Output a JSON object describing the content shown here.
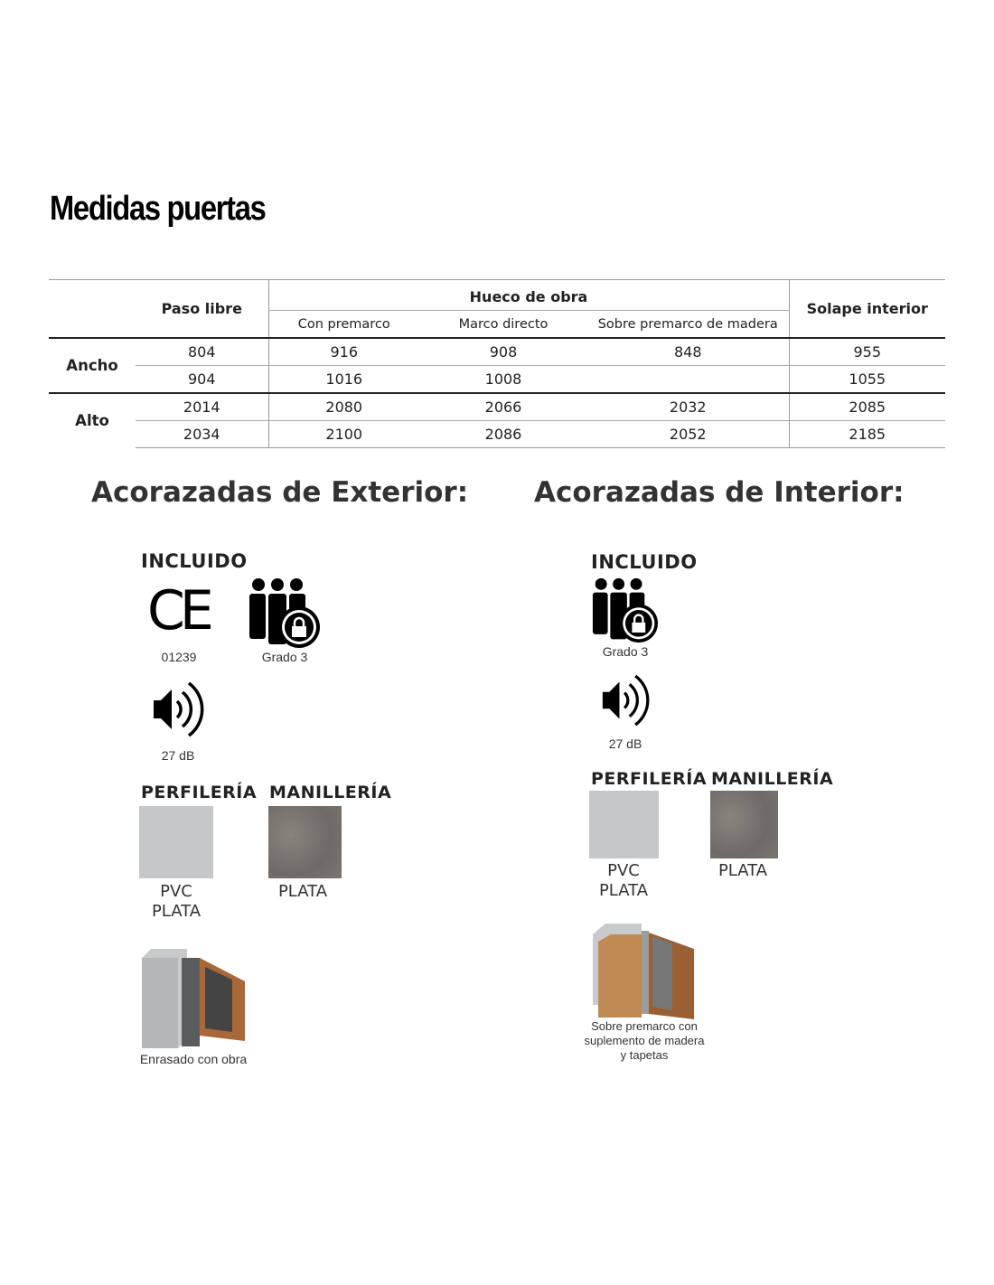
{
  "title": "Medidas puertas",
  "table": {
    "headers": {
      "paso": "Paso libre",
      "hueco": "Hueco de obra",
      "solape": "Solape interior",
      "sub": [
        "Con premarco",
        "Marco directo",
        "Sobre premarco de madera"
      ]
    },
    "groups": [
      {
        "label": "Ancho",
        "rows": [
          [
            "804",
            "916",
            "908",
            "848",
            "955"
          ],
          [
            "904",
            "1016",
            "1008",
            "",
            "1055"
          ]
        ]
      },
      {
        "label": "Alto",
        "rows": [
          [
            "2014",
            "2080",
            "2066",
            "2032",
            "2085"
          ],
          [
            "2034",
            "2100",
            "2086",
            "2052",
            "2185"
          ]
        ]
      }
    ]
  },
  "exterior": {
    "heading": "Acorazadas de Exterior:",
    "included": "INCLUIDO",
    "ce_code": "01239",
    "grade": "Grado 3",
    "sound": "27 dB",
    "profile_h": "PERFILERÍA",
    "handle_h": "MANILLERÍA",
    "profile": "PVC PLATA",
    "handle": "PLATA",
    "frame": "Enrasado con obra"
  },
  "interior": {
    "heading": "Acorazadas de Interior:",
    "included": "INCLUIDO",
    "grade": "Grado 3",
    "sound": "27 dB",
    "profile_h": "PERFILERÍA",
    "handle_h": "MANILLERÍA",
    "profile": "PVC PLATA",
    "handle": "PLATA",
    "frame": "Sobre premarco con suplemento de madera y  tapetas"
  },
  "colors": {
    "pvc_plata": "#c5c7c9",
    "plata": "#7d7772"
  },
  "icons": [
    "ce-mark-icon",
    "security-grade-icon",
    "speaker-icon"
  ]
}
